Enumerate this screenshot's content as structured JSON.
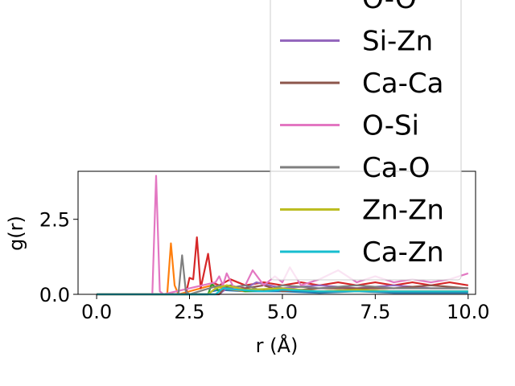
{
  "chart_data": {
    "type": "line",
    "xlabel": "r (Å)",
    "ylabel": "g(r)",
    "xlim": [
      -0.5,
      10.2
    ],
    "ylim": [
      0,
      4.1
    ],
    "x_ticks": [
      "0.0",
      "2.5",
      "5.0",
      "7.5",
      "10.0"
    ],
    "y_ticks": [
      "0.0",
      "2.5"
    ],
    "grid": false,
    "legend_position": "top-right (overlapping plot)",
    "series": [
      {
        "name": "",
        "color": "#1f77b4",
        "points": [
          [
            0,
            0
          ],
          [
            3.0,
            0
          ],
          [
            3.1,
            0.1
          ],
          [
            3.3,
            0.15
          ],
          [
            4,
            0.1
          ],
          [
            5,
            0.1
          ],
          [
            6,
            0.05
          ],
          [
            7,
            0.1
          ],
          [
            8,
            0.05
          ],
          [
            9,
            0.05
          ],
          [
            10,
            0.05
          ]
        ]
      },
      {
        "name": "",
        "color": "#ff7f0e",
        "points": [
          [
            0,
            0
          ],
          [
            1.9,
            0
          ],
          [
            2.0,
            1.7
          ],
          [
            2.1,
            0.3
          ],
          [
            2.2,
            0
          ],
          [
            3.1,
            0.3
          ],
          [
            3.4,
            0.2
          ],
          [
            4,
            0.1
          ],
          [
            5,
            0.2
          ],
          [
            6,
            0.1
          ],
          [
            7,
            0.1
          ],
          [
            8,
            0.1
          ],
          [
            9,
            0.1
          ],
          [
            10,
            0.1
          ]
        ]
      },
      {
        "name": "",
        "color": "#2ca02c",
        "points": [
          [
            0,
            0
          ],
          [
            3.0,
            0
          ],
          [
            3.1,
            0.35
          ],
          [
            3.3,
            0.1
          ],
          [
            3.6,
            0.3
          ],
          [
            4,
            0.1
          ],
          [
            5,
            0.15
          ],
          [
            6,
            0.1
          ],
          [
            7,
            0.15
          ],
          [
            8,
            0.1
          ],
          [
            9,
            0.1
          ],
          [
            10,
            0.1
          ]
        ]
      },
      {
        "name": "O-O",
        "color": "#d62728",
        "points": [
          [
            0,
            0
          ],
          [
            2.4,
            0
          ],
          [
            2.5,
            0.55
          ],
          [
            2.6,
            0.5
          ],
          [
            2.7,
            1.9
          ],
          [
            2.8,
            0.2
          ],
          [
            3.0,
            1.35
          ],
          [
            3.1,
            0.4
          ],
          [
            3.3,
            0.3
          ],
          [
            3.6,
            0.5
          ],
          [
            4,
            0.3
          ],
          [
            4.5,
            0.4
          ],
          [
            5,
            0.3
          ],
          [
            5.5,
            0.4
          ],
          [
            6,
            0.3
          ],
          [
            6.5,
            0.4
          ],
          [
            7,
            0.3
          ],
          [
            7.5,
            0.4
          ],
          [
            8,
            0.3
          ],
          [
            8.5,
            0.4
          ],
          [
            9,
            0.3
          ],
          [
            9.5,
            0.4
          ],
          [
            10,
            0.3
          ]
        ]
      },
      {
        "name": "Si-Zn",
        "color": "#9467bd",
        "points": [
          [
            0,
            0
          ],
          [
            3.3,
            0
          ],
          [
            3.5,
            0.2
          ],
          [
            4,
            0.2
          ],
          [
            4.3,
            0.4
          ],
          [
            5,
            0.2
          ],
          [
            6,
            0.3
          ],
          [
            7,
            0.2
          ],
          [
            8,
            0.3
          ],
          [
            9,
            0.2
          ],
          [
            10,
            0.2
          ]
        ]
      },
      {
        "name": "Ca-Ca",
        "color": "#8c564b",
        "points": [
          [
            0,
            0
          ],
          [
            3.3,
            0
          ],
          [
            3.5,
            0.3
          ],
          [
            4,
            0.2
          ],
          [
            4.5,
            0.3
          ],
          [
            5,
            0.1
          ],
          [
            6,
            0.2
          ],
          [
            7,
            0.2
          ],
          [
            8,
            0.2
          ],
          [
            9,
            0.3
          ],
          [
            10,
            0.2
          ]
        ]
      },
      {
        "name": "O-Si",
        "color": "#e377c2",
        "points": [
          [
            0,
            0
          ],
          [
            1.5,
            0
          ],
          [
            1.6,
            3.95
          ],
          [
            1.7,
            0.1
          ],
          [
            1.8,
            0
          ],
          [
            3.2,
            0.4
          ],
          [
            3.3,
            0.6
          ],
          [
            3.4,
            0.3
          ],
          [
            3.5,
            0.7
          ],
          [
            3.7,
            0.2
          ],
          [
            4,
            0.3
          ],
          [
            4.2,
            0.8
          ],
          [
            4.5,
            0.3
          ],
          [
            4.8,
            0.6
          ],
          [
            5,
            0.4
          ],
          [
            5.2,
            0.9
          ],
          [
            5.5,
            0.3
          ],
          [
            6,
            0.5
          ],
          [
            6.5,
            0.8
          ],
          [
            7,
            0.4
          ],
          [
            7.5,
            0.6
          ],
          [
            8,
            0.4
          ],
          [
            8.5,
            0.5
          ],
          [
            9,
            0.4
          ],
          [
            9.5,
            0.5
          ],
          [
            10,
            0.7
          ]
        ]
      },
      {
        "name": "Ca-O",
        "color": "#7f7f7f",
        "points": [
          [
            0,
            0
          ],
          [
            2.2,
            0
          ],
          [
            2.3,
            1.3
          ],
          [
            2.4,
            0.1
          ],
          [
            2.5,
            0
          ],
          [
            3.3,
            0.3
          ],
          [
            3.5,
            0.2
          ],
          [
            4,
            0.3
          ],
          [
            4.5,
            0.1
          ],
          [
            5,
            0.3
          ],
          [
            6,
            0.2
          ],
          [
            7,
            0.3
          ],
          [
            8,
            0.2
          ],
          [
            9,
            0.2
          ],
          [
            10,
            0.2
          ]
        ]
      },
      {
        "name": "Zn-Zn",
        "color": "#bcbd22",
        "points": [
          [
            0,
            0
          ],
          [
            3.0,
            0
          ],
          [
            3.2,
            0.2
          ],
          [
            3.5,
            0.3
          ],
          [
            4,
            0.15
          ],
          [
            5,
            0.2
          ],
          [
            6,
            0.1
          ],
          [
            7,
            0.15
          ],
          [
            8,
            0.1
          ],
          [
            9,
            0.1
          ],
          [
            10,
            0.1
          ]
        ]
      },
      {
        "name": "Ca-Zn",
        "color": "#17becf",
        "points": [
          [
            0,
            0
          ],
          [
            3.2,
            0
          ],
          [
            3.4,
            0.2
          ],
          [
            3.8,
            0.15
          ],
          [
            4.5,
            0.1
          ],
          [
            5,
            0.15
          ],
          [
            6,
            0.1
          ],
          [
            7,
            0.1
          ],
          [
            8,
            0.1
          ],
          [
            9,
            0.1
          ],
          [
            10,
            0.1
          ]
        ]
      }
    ]
  }
}
